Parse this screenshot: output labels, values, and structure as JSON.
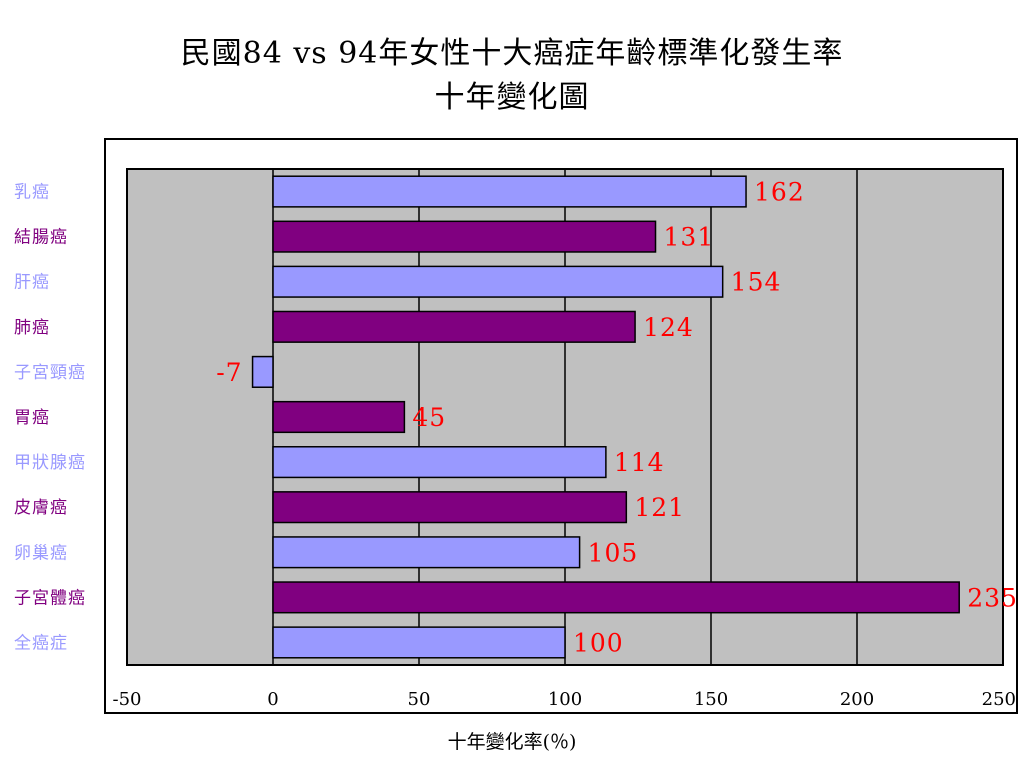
{
  "title_line1": "民國84 vs 94年女性十大癌症年齡標準化發生率",
  "title_line2": "十年變化圖",
  "chart_data": {
    "type": "bar",
    "orientation": "horizontal",
    "categories": [
      "乳癌",
      "結腸癌",
      "肝癌",
      "肺癌",
      "子宮頸癌",
      "胃癌",
      "甲狀腺癌",
      "皮膚癌",
      "卵巢癌",
      "子宮體癌",
      "全癌症"
    ],
    "values": [
      162,
      131,
      154,
      124,
      -7,
      45,
      114,
      121,
      105,
      235,
      100
    ],
    "value_labels": [
      "162",
      "131",
      "154",
      "124",
      "-7",
      "45",
      "114",
      "121",
      "105",
      "235",
      "100"
    ],
    "xlabel": "十年變化率(％)",
    "xlim": [
      -50,
      250
    ],
    "xticks": [
      "-50",
      "0",
      "50",
      "100",
      "150",
      "200",
      "250"
    ],
    "grid": "vertical",
    "legend": "none"
  },
  "colors": {
    "bar_light": "#9999FF",
    "bar_dark": "#800080",
    "label_light": "#9999FF",
    "label_dark": "#800080",
    "data_label": "#FF0000",
    "plot_bg": "#C0C0C0"
  }
}
